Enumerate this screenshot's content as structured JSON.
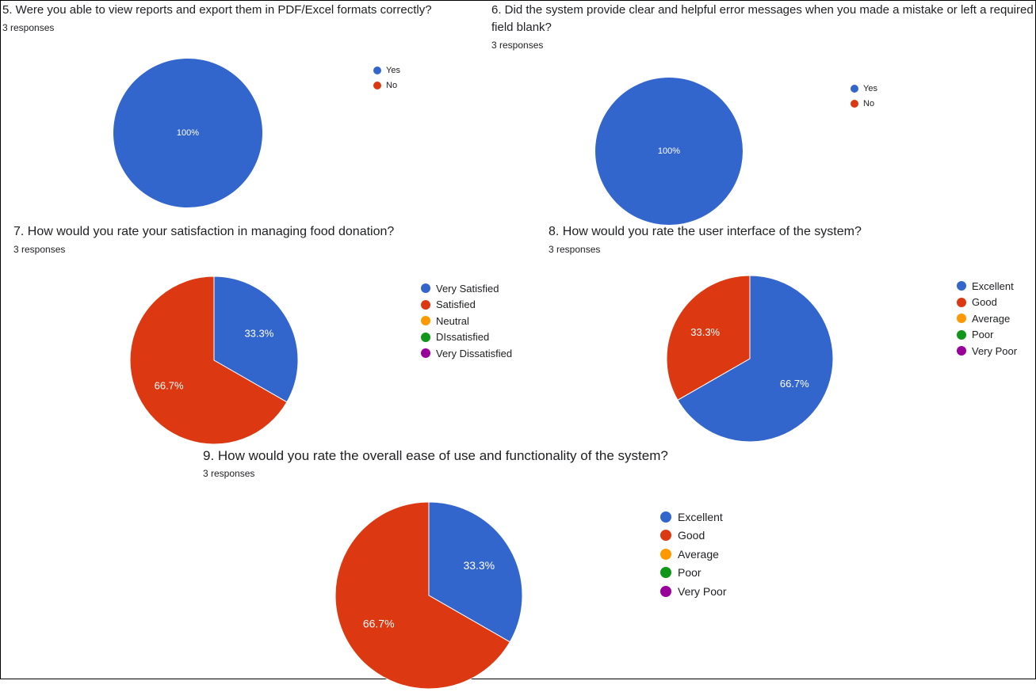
{
  "colors": {
    "blue": "#3366cc",
    "red": "#dc3912",
    "orange": "#ff9900",
    "green": "#109618",
    "purple": "#990099",
    "label": "#ffffff"
  },
  "questions": [
    {
      "title": "5.  Were you able to view reports and export them in PDF/Excel formats correctly?",
      "responses": "3 responses"
    },
    {
      "title": "6. Did the system provide clear and helpful error messages when you made a mistake or left a required field blank?",
      "responses": "3 responses"
    },
    {
      "title": "7. How would you rate your satisfaction in  managing food donation?",
      "responses": "3 responses"
    },
    {
      "title": "8.  How would you rate the user interface of the system?",
      "responses": "3 responses"
    },
    {
      "title": "9. How would you rate the overall ease of use and functionality of the system?",
      "responses": "3 responses"
    }
  ],
  "chart_data": [
    {
      "type": "pie",
      "categories": [
        "Yes",
        "No"
      ],
      "values": [
        100,
        0
      ],
      "data_labels": [
        "100%",
        ""
      ],
      "colors": [
        "#3366cc",
        "#dc3912"
      ],
      "legend": "right"
    },
    {
      "type": "pie",
      "categories": [
        "Yes",
        "No"
      ],
      "values": [
        100,
        0
      ],
      "data_labels": [
        "100%",
        ""
      ],
      "colors": [
        "#3366cc",
        "#dc3912"
      ],
      "legend": "right"
    },
    {
      "type": "pie",
      "categories": [
        "Very Satisfied",
        "Satisfied",
        "Neutral",
        "DIssatisfied",
        "Very Dissatisfied"
      ],
      "values": [
        33.3,
        66.7,
        0,
        0,
        0
      ],
      "data_labels": [
        "33.3%",
        "66.7%",
        "",
        "",
        ""
      ],
      "colors": [
        "#3366cc",
        "#dc3912",
        "#ff9900",
        "#109618",
        "#990099"
      ],
      "legend": "right"
    },
    {
      "type": "pie",
      "categories": [
        "Excellent",
        "Good",
        "Average",
        "Poor",
        "Very Poor"
      ],
      "values": [
        66.7,
        33.3,
        0,
        0,
        0
      ],
      "data_labels": [
        "66.7%",
        "33.3%",
        "",
        "",
        ""
      ],
      "colors": [
        "#3366cc",
        "#dc3912",
        "#ff9900",
        "#109618",
        "#990099"
      ],
      "legend": "right"
    },
    {
      "type": "pie",
      "categories": [
        "Excellent",
        "Good",
        "Average",
        "Poor",
        "Very Poor"
      ],
      "values": [
        33.3,
        66.7,
        0,
        0,
        0
      ],
      "data_labels": [
        "33.3%",
        "66.7%",
        "",
        "",
        ""
      ],
      "colors": [
        "#3366cc",
        "#dc3912",
        "#ff9900",
        "#109618",
        "#990099"
      ],
      "legend": "right"
    }
  ]
}
